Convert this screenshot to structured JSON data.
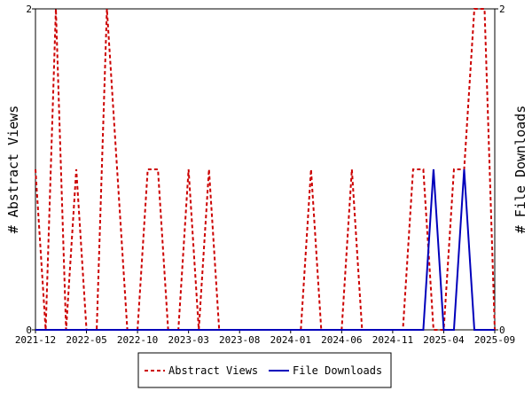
{
  "chart_data": {
    "type": "line",
    "x_tick_labels": [
      "2021-12",
      "2022-05",
      "2022-10",
      "2023-03",
      "2023-08",
      "2024-01",
      "2024-06",
      "2024-11",
      "2025-04",
      "2025-09"
    ],
    "x_index_range": [
      0,
      45
    ],
    "y_left": {
      "label": "# Abstract Views",
      "ylim": [
        0,
        2
      ],
      "ticks": [
        "0",
        "2"
      ]
    },
    "y_right": {
      "label": "# File Downloads",
      "ylim": [
        0,
        2
      ],
      "ticks": [
        "0",
        "2"
      ]
    },
    "legend_position": "bottom",
    "grid": false,
    "series": [
      {
        "name": "Abstract Views",
        "axis": "left",
        "color": "#cc0000",
        "dash": true,
        "x": [
          0,
          1,
          2,
          3,
          4,
          5,
          6,
          7,
          8,
          9,
          10,
          11,
          12,
          13,
          14,
          15,
          16,
          17,
          18,
          19,
          20,
          21,
          22,
          23,
          24,
          25,
          26,
          27,
          28,
          29,
          30,
          31,
          32,
          33,
          34,
          35,
          36,
          37,
          38,
          39,
          40,
          41,
          42,
          43,
          44,
          45
        ],
        "values": [
          1,
          0,
          2,
          0,
          1,
          0,
          0,
          2,
          1,
          0,
          0,
          1,
          1,
          0,
          0,
          1,
          0,
          1,
          0,
          0,
          0,
          0,
          0,
          0,
          0,
          0,
          0,
          1,
          0,
          0,
          0,
          1,
          0,
          0,
          0,
          0,
          0,
          1,
          1,
          0,
          0,
          1,
          1,
          2,
          2,
          0
        ]
      },
      {
        "name": "File Downloads",
        "axis": "right",
        "color": "#0000bb",
        "dash": false,
        "x": [
          0,
          1,
          2,
          3,
          4,
          5,
          6,
          7,
          8,
          9,
          10,
          11,
          12,
          13,
          14,
          15,
          16,
          17,
          18,
          19,
          20,
          21,
          22,
          23,
          24,
          25,
          26,
          27,
          28,
          29,
          30,
          31,
          32,
          33,
          34,
          35,
          36,
          37,
          38,
          39,
          40,
          41,
          42,
          43,
          44,
          45
        ],
        "values": [
          0,
          0,
          0,
          0,
          0,
          0,
          0,
          0,
          0,
          0,
          0,
          0,
          0,
          0,
          0,
          0,
          0,
          0,
          0,
          0,
          0,
          0,
          0,
          0,
          0,
          0,
          0,
          0,
          0,
          0,
          0,
          0,
          0,
          0,
          0,
          0,
          0,
          0,
          0,
          1,
          0,
          0,
          1,
          0,
          0,
          0
        ]
      }
    ]
  }
}
